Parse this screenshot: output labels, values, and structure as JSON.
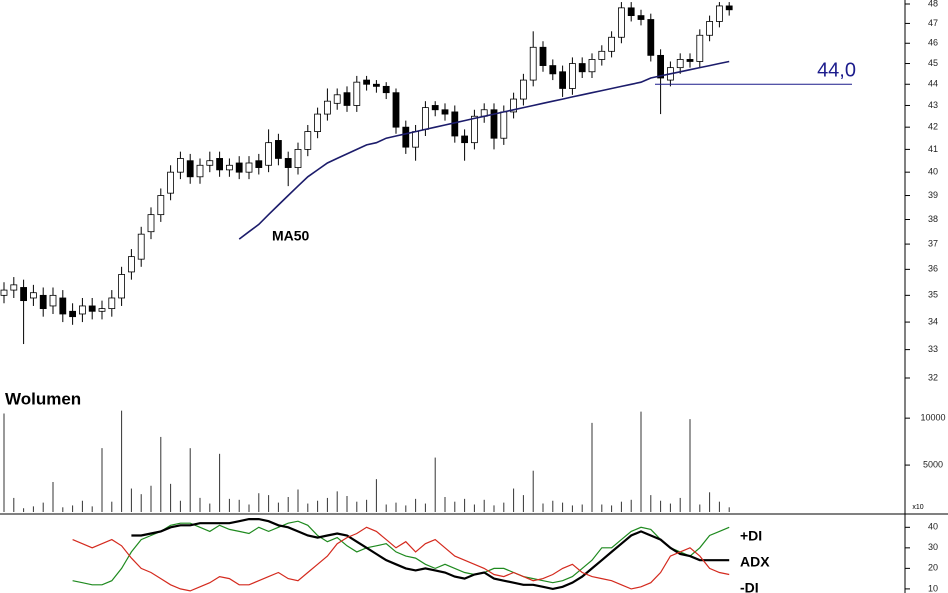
{
  "chart_data": [
    {
      "type": "candlestick",
      "open": [
        35.0,
        35.2,
        35.3,
        34.9,
        35.0,
        34.6,
        34.9,
        34.4,
        34.3,
        34.6,
        34.4,
        34.5,
        34.9,
        35.9,
        36.4,
        37.5,
        38.2,
        39.1,
        40.0,
        40.5,
        39.8,
        40.3,
        40.6,
        40.1,
        40.4,
        40.0,
        40.5,
        40.3,
        41.4,
        40.6,
        40.2,
        41.0,
        41.8,
        42.6,
        43.1,
        43.6,
        43.0,
        44.2,
        44.0,
        43.9,
        43.6,
        42.0,
        41.1,
        41.9,
        43.0,
        42.8,
        42.7,
        41.6,
        41.3,
        42.5,
        42.8,
        41.5,
        42.7,
        43.3,
        44.2,
        45.8,
        44.9,
        44.6,
        43.8,
        45.0,
        44.6,
        45.2,
        45.6,
        46.3,
        47.8,
        47.4,
        47.2,
        45.4,
        44.2,
        44.8,
        45.2,
        45.1,
        46.4,
        47.1,
        47.9
      ],
      "high": [
        35.5,
        35.7,
        35.6,
        35.4,
        35.3,
        35.3,
        35.2,
        34.7,
        34.9,
        34.9,
        34.8,
        35.2,
        36.1,
        36.8,
        37.7,
        38.5,
        39.3,
        40.3,
        40.9,
        40.8,
        40.6,
        40.9,
        40.9,
        40.6,
        40.7,
        40.7,
        40.8,
        41.9,
        41.7,
        40.9,
        41.3,
        42.1,
        42.9,
        43.8,
        43.8,
        43.9,
        44.4,
        44.4,
        44.2,
        44.1,
        43.8,
        42.3,
        42.1,
        43.2,
        43.2,
        43.1,
        43.0,
        41.9,
        42.8,
        43.1,
        43.1,
        43.0,
        43.6,
        44.5,
        46.6,
        46.1,
        45.2,
        44.9,
        45.3,
        45.3,
        45.5,
        45.9,
        46.6,
        48.1,
        48.1,
        47.7,
        47.5,
        45.7,
        45.1,
        45.5,
        45.5,
        46.7,
        47.4,
        48.1,
        48.1
      ],
      "low": [
        34.7,
        34.9,
        33.2,
        34.6,
        34.2,
        34.3,
        34.0,
        33.9,
        34.0,
        34.1,
        34.1,
        34.2,
        34.6,
        35.6,
        36.1,
        37.2,
        37.9,
        38.8,
        39.7,
        39.5,
        39.5,
        40.0,
        39.8,
        39.8,
        39.7,
        39.7,
        39.9,
        40.0,
        40.3,
        39.4,
        39.9,
        40.7,
        41.5,
        42.3,
        42.8,
        42.7,
        42.7,
        43.7,
        43.6,
        43.3,
        41.7,
        40.8,
        40.5,
        41.6,
        42.5,
        42.3,
        41.3,
        40.5,
        41.0,
        42.2,
        41.0,
        41.2,
        42.4,
        43.0,
        43.9,
        44.6,
        44.2,
        43.4,
        43.5,
        44.3,
        44.3,
        44.9,
        45.3,
        46.0,
        47.1,
        46.9,
        45.1,
        42.6,
        43.9,
        44.5,
        44.8,
        44.8,
        46.1,
        46.8,
        47.4
      ],
      "close": [
        35.2,
        35.4,
        34.8,
        35.1,
        34.5,
        35.0,
        34.3,
        34.2,
        34.6,
        34.4,
        34.5,
        34.9,
        35.8,
        36.5,
        37.4,
        38.2,
        39.0,
        40.0,
        40.6,
        39.8,
        40.3,
        40.5,
        40.1,
        40.3,
        40.0,
        40.4,
        40.2,
        41.3,
        40.6,
        40.2,
        41.0,
        41.8,
        42.6,
        43.2,
        43.5,
        43.0,
        44.1,
        44.0,
        43.9,
        43.6,
        42.0,
        41.1,
        41.8,
        42.9,
        42.8,
        42.6,
        41.6,
        41.3,
        42.5,
        42.8,
        41.5,
        42.7,
        43.3,
        44.2,
        45.8,
        44.9,
        44.5,
        43.8,
        45.0,
        44.6,
        45.2,
        45.6,
        46.3,
        47.8,
        47.4,
        47.2,
        45.4,
        44.3,
        44.8,
        45.2,
        45.1,
        46.4,
        47.1,
        47.9,
        47.7
      ],
      "ma": {
        "name": "MA50",
        "color": "#1c1c6b",
        "values": [
          null,
          null,
          null,
          null,
          null,
          null,
          null,
          null,
          null,
          null,
          null,
          null,
          null,
          null,
          null,
          null,
          null,
          null,
          null,
          null,
          null,
          null,
          null,
          null,
          37.2,
          37.5,
          37.8,
          38.2,
          38.6,
          39.0,
          39.4,
          39.8,
          40.1,
          40.4,
          40.6,
          40.8,
          41.0,
          41.2,
          41.3,
          41.5,
          41.6,
          41.7,
          41.8,
          41.9,
          42.0,
          42.1,
          42.2,
          42.3,
          42.4,
          42.5,
          42.6,
          42.7,
          42.8,
          42.9,
          43.0,
          43.1,
          43.2,
          43.3,
          43.4,
          43.5,
          43.6,
          43.7,
          43.8,
          43.9,
          44.0,
          44.1,
          44.3,
          44.4,
          44.5,
          44.6,
          44.7,
          44.8,
          44.9,
          45.0,
          45.1
        ]
      },
      "annotation": {
        "value": 44,
        "label": "44,0",
        "color": "#1c1c8c"
      },
      "ylim": [
        32,
        48
      ],
      "yticks": [
        32,
        33,
        34,
        35,
        36,
        37,
        38,
        39,
        40,
        41,
        42,
        43,
        44,
        45,
        46,
        47,
        48
      ],
      "log_scale": true
    },
    {
      "type": "bar",
      "title": "Wolumen",
      "multiplier_label": "x10",
      "values": [
        10500,
        1500,
        400,
        600,
        1000,
        3200,
        500,
        700,
        1200,
        600,
        6800,
        1100,
        10800,
        2500,
        1900,
        2800,
        8000,
        3000,
        1200,
        6800,
        1500,
        900,
        6200,
        1400,
        1300,
        800,
        2000,
        1800,
        1000,
        1600,
        2400,
        900,
        1200,
        1500,
        2200,
        1700,
        1100,
        1300,
        3500,
        800,
        1000,
        700,
        1400,
        900,
        5800,
        1600,
        1100,
        1400,
        800,
        1300,
        700,
        1000,
        2500,
        1800,
        4400,
        900,
        1200,
        1000,
        700,
        800,
        9500,
        800,
        700,
        1100,
        1300,
        10700,
        1800,
        1200,
        900,
        1500,
        9900,
        800,
        2100,
        1100,
        500
      ],
      "color": "#333333",
      "ylim": [
        0,
        13000
      ],
      "yticks": [
        5000,
        10000
      ]
    },
    {
      "type": "line",
      "series": [
        {
          "name": "+DI",
          "color": "#1f8a1f",
          "values": [
            null,
            null,
            null,
            null,
            null,
            null,
            null,
            14,
            13,
            12,
            12,
            14,
            20,
            28,
            34,
            36,
            38,
            41,
            42,
            42,
            40,
            38,
            41,
            39,
            38,
            37,
            40,
            38,
            40,
            42,
            43,
            41,
            36,
            33,
            35,
            31,
            28,
            30,
            31,
            32,
            28,
            26,
            25,
            22,
            20,
            22,
            20,
            18,
            17,
            18,
            20,
            20,
            18,
            16,
            15,
            14,
            13,
            14,
            16,
            20,
            24,
            30,
            30,
            34,
            38,
            40,
            39,
            34,
            30,
            28,
            26,
            30,
            36,
            38,
            40
          ]
        },
        {
          "name": "ADX",
          "color": "#000000",
          "values": [
            null,
            null,
            null,
            null,
            null,
            null,
            null,
            null,
            null,
            null,
            null,
            null,
            null,
            36,
            36,
            37,
            38,
            40,
            41,
            41,
            42,
            42,
            42,
            42,
            43,
            44,
            44,
            43,
            41,
            40,
            38,
            36,
            35,
            36,
            37,
            36,
            33,
            30,
            27,
            24,
            22,
            20,
            19,
            20,
            19,
            18,
            16,
            15,
            17,
            18,
            15,
            14,
            13,
            12,
            12,
            11,
            10,
            11,
            13,
            16,
            20,
            24,
            28,
            32,
            36,
            38,
            36,
            34,
            30,
            27,
            26,
            24,
            24,
            24,
            24
          ]
        },
        {
          "name": "-DI",
          "color": "#d42a1e",
          "values": [
            null,
            null,
            null,
            null,
            null,
            null,
            null,
            34,
            32,
            30,
            32,
            34,
            31,
            25,
            20,
            18,
            15,
            12,
            10,
            9,
            11,
            13,
            16,
            15,
            12,
            12,
            14,
            16,
            18,
            15,
            14,
            18,
            22,
            26,
            32,
            35,
            37,
            40,
            38,
            34,
            30,
            33,
            28,
            32,
            34,
            30,
            26,
            24,
            22,
            20,
            17,
            16,
            18,
            16,
            14,
            15,
            17,
            20,
            22,
            18,
            16,
            15,
            14,
            12,
            10,
            11,
            13,
            18,
            26,
            28,
            30,
            26,
            20,
            18,
            17
          ]
        }
      ],
      "ylim": [
        8,
        46
      ],
      "yticks": [
        10,
        20,
        30,
        40
      ]
    }
  ]
}
